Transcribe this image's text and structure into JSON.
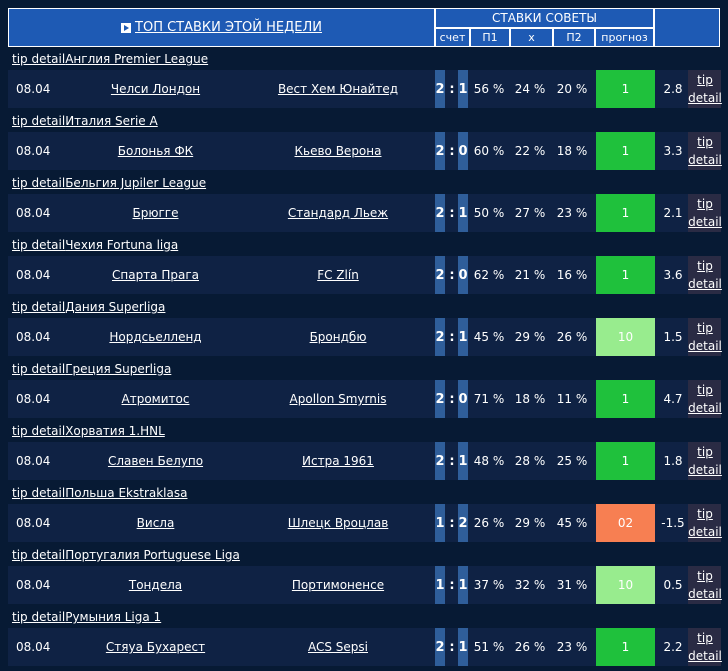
{
  "header": {
    "title": "ТОП СТАВКИ ЭТОЙ НЕДЕЛИ",
    "group": "СТАВКИ СОВЕТЫ",
    "col_score": "счет",
    "col_p1": "П1",
    "col_x": "x",
    "col_p2": "П2",
    "col_forecast": "прогноз"
  },
  "colors": {
    "win_green": "#1fc13c",
    "light_green": "#98ec8e",
    "orange": "#f77f52"
  },
  "tip_label": "tip detail",
  "tip_word1": "tip",
  "tip_word2": "detail",
  "matches": [
    {
      "league": "Англия Premier League",
      "date": "08.04",
      "home": "Челси Лондон",
      "away": "Вест Хем Юнайтед",
      "s1": "2",
      "s2": "1",
      "p1": "56 %",
      "x": "24 %",
      "p2": "20 %",
      "forecast": "1",
      "forecast_color": "win_green",
      "odd": "2.8"
    },
    {
      "league": "Италия Serie A",
      "date": "08.04",
      "home": "Болонья ФК",
      "away": "Кьево Верона",
      "s1": "2",
      "s2": "0",
      "p1": "60 %",
      "x": "22 %",
      "p2": "18 %",
      "forecast": "1",
      "forecast_color": "win_green",
      "odd": "3.3"
    },
    {
      "league": "Бельгия Jupiler League",
      "date": "08.04",
      "home": "Брюгге",
      "away": "Стандард Льеж",
      "s1": "2",
      "s2": "1",
      "p1": "50 %",
      "x": "27 %",
      "p2": "23 %",
      "forecast": "1",
      "forecast_color": "win_green",
      "odd": "2.1"
    },
    {
      "league": "Чехия Fortuna liga",
      "date": "08.04",
      "home": "Спарта Прага",
      "away": "FC Zlín",
      "s1": "2",
      "s2": "0",
      "p1": "62 %",
      "x": "21 %",
      "p2": "16 %",
      "forecast": "1",
      "forecast_color": "win_green",
      "odd": "3.6"
    },
    {
      "league": "Дания Superliga",
      "date": "08.04",
      "home": "Нордсьелленд",
      "away": "Брондбю",
      "s1": "2",
      "s2": "1",
      "p1": "45 %",
      "x": "29 %",
      "p2": "26 %",
      "forecast": "10",
      "forecast_color": "light_green",
      "odd": "1.5"
    },
    {
      "league": "Греция Superliga",
      "date": "08.04",
      "home": "Атромитос",
      "away": "Apollon Smyrnis",
      "s1": "2",
      "s2": "0",
      "p1": "71 %",
      "x": "18 %",
      "p2": "11 %",
      "forecast": "1",
      "forecast_color": "win_green",
      "odd": "4.7"
    },
    {
      "league": "Хорватия 1.HNL",
      "date": "08.04",
      "home": "Славен Белупо",
      "away": "Истра 1961",
      "s1": "2",
      "s2": "1",
      "p1": "48 %",
      "x": "28 %",
      "p2": "25 %",
      "forecast": "1",
      "forecast_color": "win_green",
      "odd": "1.8"
    },
    {
      "league": "Польша Ekstraklasa",
      "date": "08.04",
      "home": "Висла",
      "away": "Шлецк Вроцлав",
      "s1": "1",
      "s2": "2",
      "p1": "26 %",
      "x": "29 %",
      "p2": "45 %",
      "forecast": "02",
      "forecast_color": "orange",
      "odd": "-1.5"
    },
    {
      "league": "Португалия Portuguese Liga",
      "date": "08.04",
      "home": "Тондела",
      "away": "Портимоненсе",
      "s1": "1",
      "s2": "1",
      "p1": "37 %",
      "x": "32 %",
      "p2": "31 %",
      "forecast": "10",
      "forecast_color": "light_green",
      "odd": "0.5"
    },
    {
      "league": "Румыния Liga 1",
      "date": "08.04",
      "home": "Стяуа Бухарест",
      "away": "ACS Sepsi",
      "s1": "2",
      "s2": "1",
      "p1": "51 %",
      "x": "26 %",
      "p2": "23 %",
      "forecast": "1",
      "forecast_color": "win_green",
      "odd": "2.2"
    }
  ]
}
